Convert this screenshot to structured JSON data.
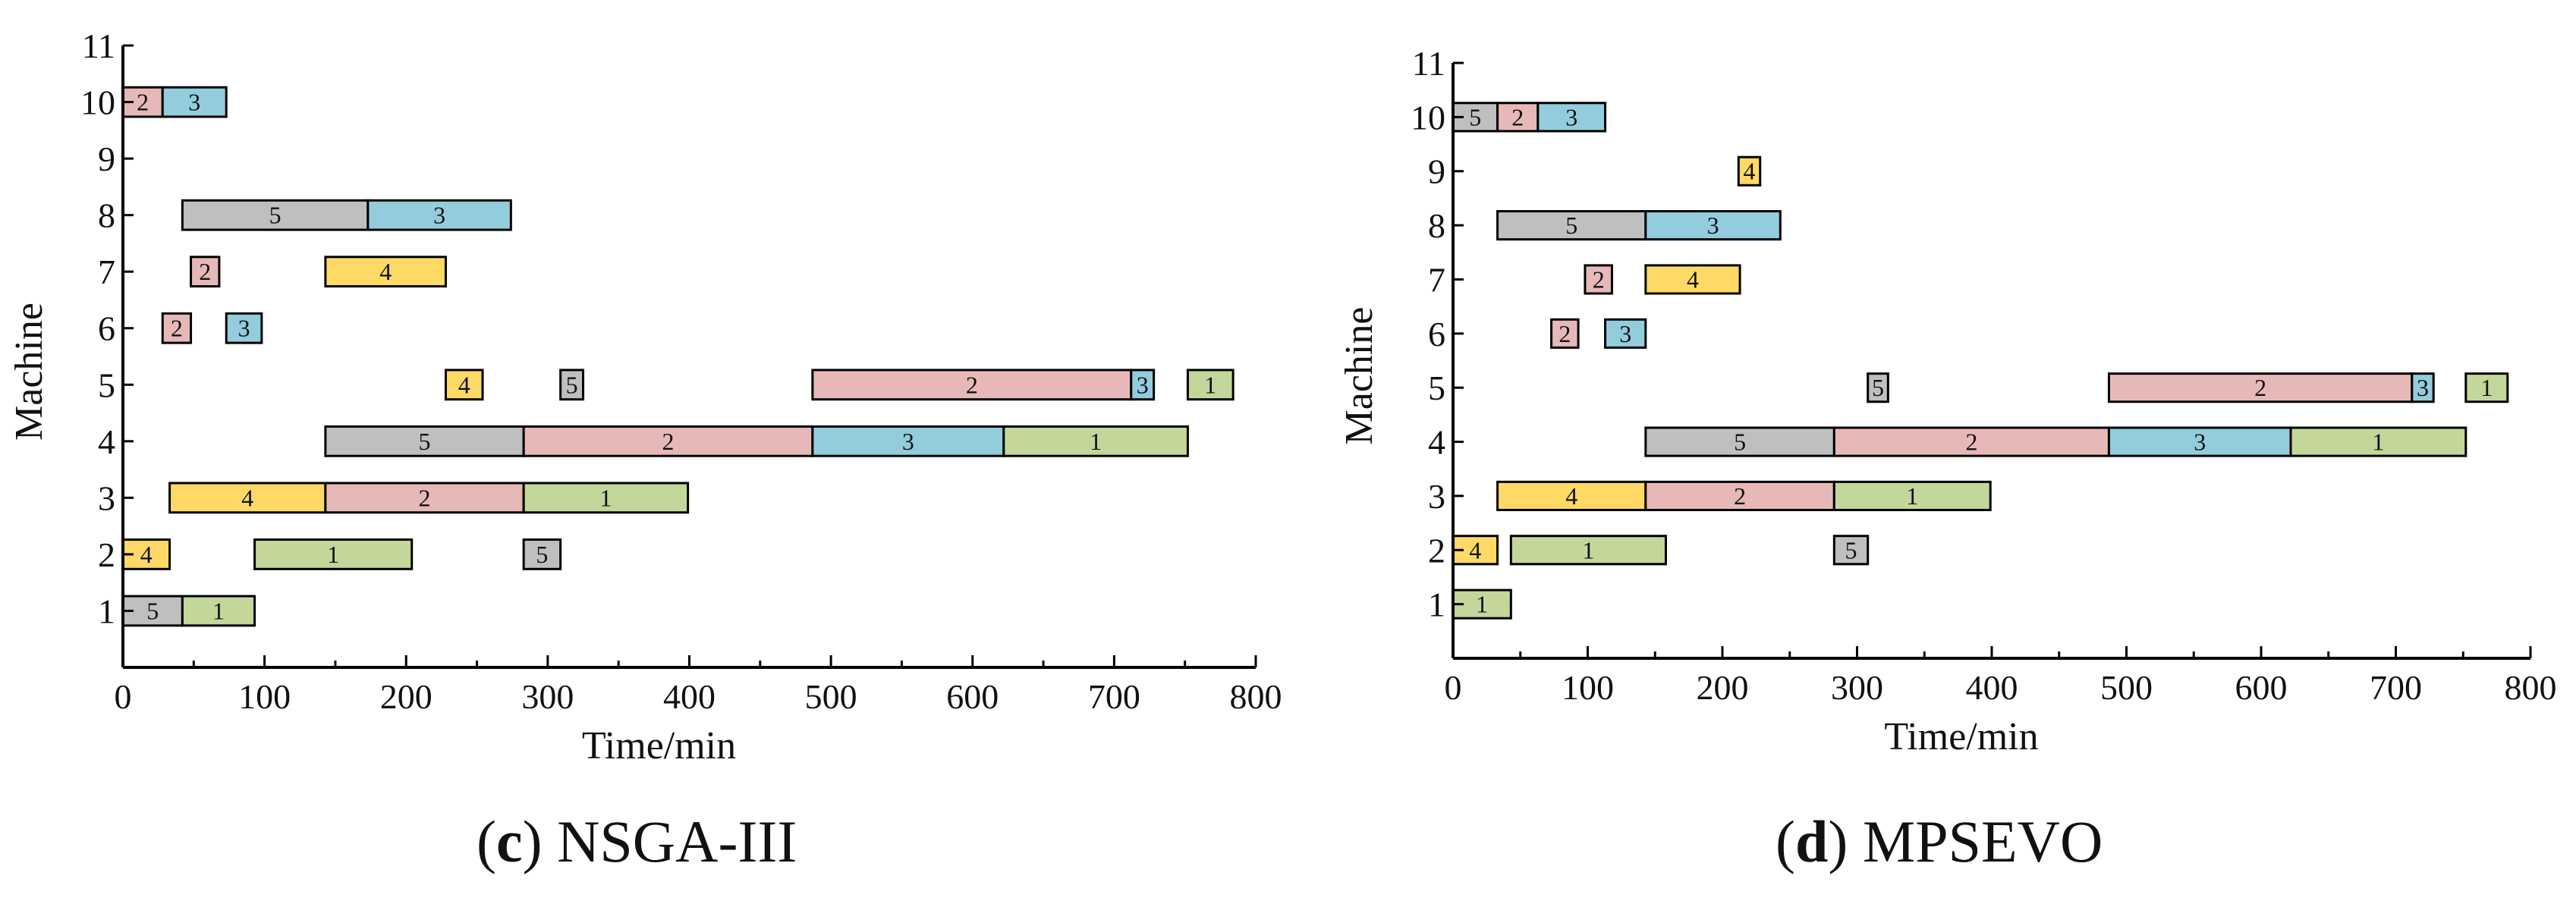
{
  "captions": [
    {
      "letter": "c",
      "rest": "NSGA-III"
    },
    {
      "letter": "d",
      "rest": "MPSEVO"
    }
  ],
  "colors": {
    "1": "#c4d79b",
    "2": "#e6b9b8",
    "3": "#93cddd",
    "4": "#ffd966",
    "5": "#bfbfbf"
  },
  "chart_data": [
    {
      "type": "gantt",
      "xlabel": "Time/min",
      "ylabel": "Machine",
      "xlim": [
        0,
        800
      ],
      "ylim": [
        0,
        11
      ],
      "xticks": [
        0,
        100,
        200,
        300,
        400,
        500,
        600,
        700,
        800
      ],
      "yticks": [
        1,
        2,
        3,
        4,
        5,
        6,
        7,
        8,
        9,
        10,
        11
      ],
      "tasks": [
        {
          "machine": 10,
          "job": "2",
          "start": 0,
          "end": 28
        },
        {
          "machine": 10,
          "job": "3",
          "start": 28,
          "end": 73
        },
        {
          "machine": 8,
          "job": "5",
          "start": 42,
          "end": 173
        },
        {
          "machine": 8,
          "job": "3",
          "start": 173,
          "end": 274
        },
        {
          "machine": 7,
          "job": "2",
          "start": 48,
          "end": 68
        },
        {
          "machine": 7,
          "job": "4",
          "start": 143,
          "end": 228
        },
        {
          "machine": 6,
          "job": "2",
          "start": 28,
          "end": 48
        },
        {
          "machine": 6,
          "job": "3",
          "start": 73,
          "end": 98
        },
        {
          "machine": 5,
          "job": "4",
          "start": 228,
          "end": 254
        },
        {
          "machine": 5,
          "job": "5",
          "start": 309,
          "end": 325
        },
        {
          "machine": 5,
          "job": "2",
          "start": 487,
          "end": 712
        },
        {
          "machine": 5,
          "job": "3",
          "start": 712,
          "end": 728
        },
        {
          "machine": 5,
          "job": "1",
          "start": 752,
          "end": 784
        },
        {
          "machine": 4,
          "job": "5",
          "start": 143,
          "end": 283
        },
        {
          "machine": 4,
          "job": "2",
          "start": 283,
          "end": 487
        },
        {
          "machine": 4,
          "job": "3",
          "start": 487,
          "end": 622
        },
        {
          "machine": 4,
          "job": "1",
          "start": 622,
          "end": 752
        },
        {
          "machine": 3,
          "job": "4",
          "start": 33,
          "end": 143
        },
        {
          "machine": 3,
          "job": "2",
          "start": 143,
          "end": 283
        },
        {
          "machine": 3,
          "job": "1",
          "start": 283,
          "end": 399
        },
        {
          "machine": 2,
          "job": "4",
          "start": 0,
          "end": 33
        },
        {
          "machine": 2,
          "job": "1",
          "start": 93,
          "end": 204
        },
        {
          "machine": 2,
          "job": "5",
          "start": 283,
          "end": 309
        },
        {
          "machine": 1,
          "job": "5",
          "start": 0,
          "end": 42
        },
        {
          "machine": 1,
          "job": "1",
          "start": 42,
          "end": 93
        }
      ]
    },
    {
      "type": "gantt",
      "xlabel": "Time/min",
      "ylabel": "Machine",
      "xlim": [
        0,
        800
      ],
      "ylim": [
        0,
        11
      ],
      "xticks": [
        0,
        100,
        200,
        300,
        400,
        500,
        600,
        700,
        800
      ],
      "yticks": [
        1,
        2,
        3,
        4,
        5,
        6,
        7,
        8,
        9,
        10,
        11
      ],
      "tasks": [
        {
          "machine": 10,
          "job": "5",
          "start": 0,
          "end": 33
        },
        {
          "machine": 10,
          "job": "2",
          "start": 33,
          "end": 63
        },
        {
          "machine": 10,
          "job": "3",
          "start": 63,
          "end": 113
        },
        {
          "machine": 9,
          "job": "4",
          "start": 212,
          "end": 228
        },
        {
          "machine": 8,
          "job": "5",
          "start": 33,
          "end": 143
        },
        {
          "machine": 8,
          "job": "3",
          "start": 143,
          "end": 243
        },
        {
          "machine": 7,
          "job": "2",
          "start": 98,
          "end": 118
        },
        {
          "machine": 7,
          "job": "4",
          "start": 143,
          "end": 213
        },
        {
          "machine": 6,
          "job": "2",
          "start": 73,
          "end": 93
        },
        {
          "machine": 6,
          "job": "3",
          "start": 113,
          "end": 143
        },
        {
          "machine": 5,
          "job": "5",
          "start": 308,
          "end": 323
        },
        {
          "machine": 5,
          "job": "2",
          "start": 487,
          "end": 712
        },
        {
          "machine": 5,
          "job": "3",
          "start": 712,
          "end": 728
        },
        {
          "machine": 5,
          "job": "1",
          "start": 752,
          "end": 783
        },
        {
          "machine": 4,
          "job": "5",
          "start": 143,
          "end": 283
        },
        {
          "machine": 4,
          "job": "2",
          "start": 283,
          "end": 487
        },
        {
          "machine": 4,
          "job": "3",
          "start": 487,
          "end": 622
        },
        {
          "machine": 4,
          "job": "1",
          "start": 622,
          "end": 752
        },
        {
          "machine": 3,
          "job": "4",
          "start": 33,
          "end": 143
        },
        {
          "machine": 3,
          "job": "2",
          "start": 143,
          "end": 283
        },
        {
          "machine": 3,
          "job": "1",
          "start": 283,
          "end": 399
        },
        {
          "machine": 2,
          "job": "4",
          "start": 0,
          "end": 33
        },
        {
          "machine": 2,
          "job": "1",
          "start": 43,
          "end": 158
        },
        {
          "machine": 2,
          "job": "5",
          "start": 283,
          "end": 308
        },
        {
          "machine": 1,
          "job": "1",
          "start": 0,
          "end": 43
        }
      ]
    }
  ]
}
